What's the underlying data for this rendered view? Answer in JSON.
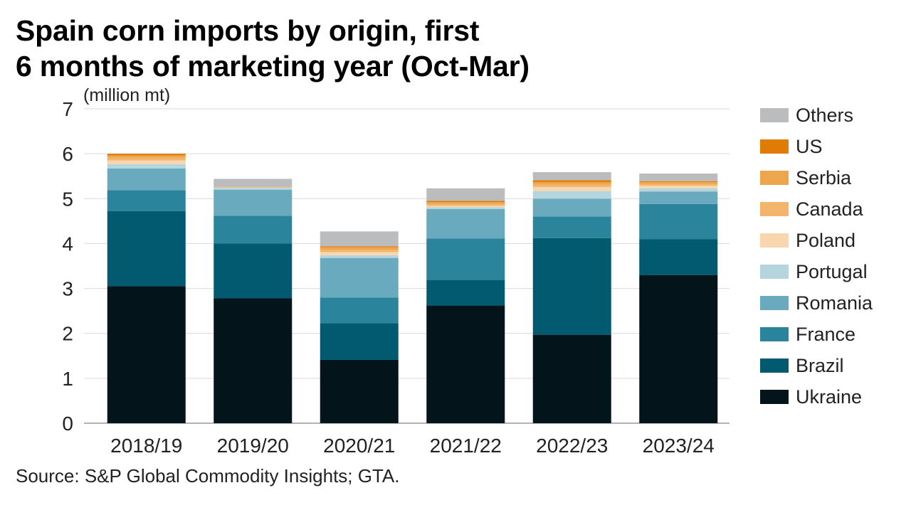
{
  "title_lines": [
    "Spain corn imports by origin, first",
    "6 months of marketing year (Oct-Mar)"
  ],
  "unit_label": "(million mt)",
  "source": "Source: S&P Global Commodity Insights; GTA.",
  "chart_data": {
    "type": "bar",
    "stacked": true,
    "title": "Spain corn imports by origin, first 6 months of marketing year (Oct-Mar)",
    "ylabel": "(million mt)",
    "ylim": [
      0,
      7
    ],
    "yticks": [
      0,
      1,
      2,
      3,
      4,
      5,
      6,
      7
    ],
    "grid": true,
    "legend_position": "right",
    "categories": [
      "2018/19",
      "2019/20",
      "2020/21",
      "2021/22",
      "2022/23",
      "2023/24"
    ],
    "series": [
      {
        "name": "Ukraine",
        "color": "#04141b",
        "values": [
          3.05,
          2.78,
          1.41,
          2.62,
          1.97,
          3.3
        ]
      },
      {
        "name": "Brazil",
        "color": "#015a6f",
        "values": [
          1.67,
          1.22,
          0.82,
          0.57,
          2.15,
          0.8
        ]
      },
      {
        "name": "France",
        "color": "#2a849c",
        "values": [
          0.47,
          0.62,
          0.57,
          0.92,
          0.48,
          0.78
        ]
      },
      {
        "name": "Romania",
        "color": "#6aaabe",
        "values": [
          0.48,
          0.58,
          0.88,
          0.66,
          0.4,
          0.28
        ]
      },
      {
        "name": "Portugal",
        "color": "#b4d5de",
        "values": [
          0.1,
          0.04,
          0.06,
          0.04,
          0.17,
          0.07
        ]
      },
      {
        "name": "Poland",
        "color": "#f9d6ae",
        "values": [
          0.08,
          0.01,
          0.07,
          0.03,
          0.09,
          0.06
        ]
      },
      {
        "name": "Canada",
        "color": "#f3b46b",
        "values": [
          0.06,
          0.0,
          0.05,
          0.04,
          0.05,
          0.04
        ]
      },
      {
        "name": "Serbia",
        "color": "#eea64d",
        "values": [
          0.05,
          0.01,
          0.06,
          0.04,
          0.06,
          0.04
        ]
      },
      {
        "name": "US",
        "color": "#e07b05",
        "values": [
          0.04,
          0.0,
          0.02,
          0.03,
          0.04,
          0.02
        ]
      },
      {
        "name": "Others",
        "color": "#bbbcbe",
        "values": [
          0.0,
          0.18,
          0.33,
          0.28,
          0.18,
          0.17
        ]
      }
    ]
  }
}
